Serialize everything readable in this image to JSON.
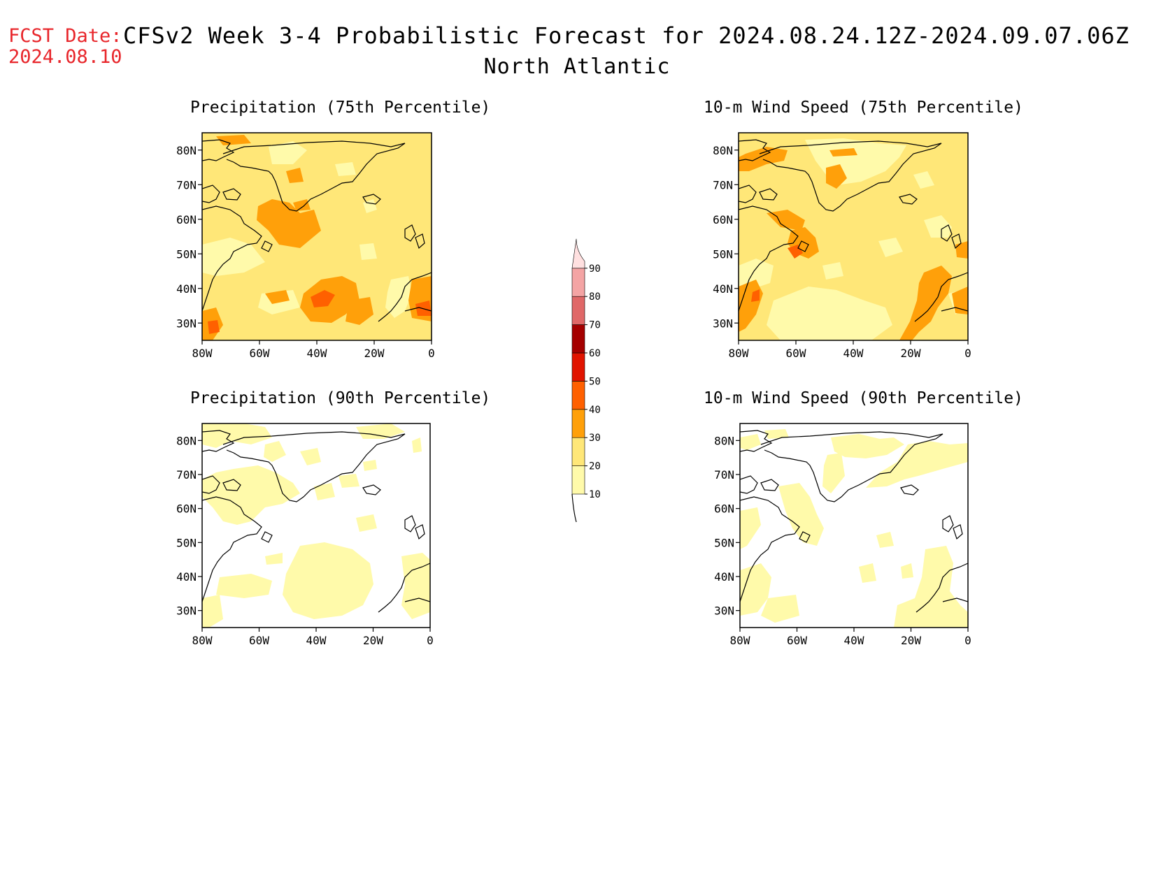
{
  "header": {
    "fcst_label": "FCST Date:",
    "fcst_date": "2024.08.10",
    "title": "CFSv2 Week 3-4 Probabilistic Forecast for 2024.08.24.12Z-2024.09.07.06Z",
    "subtitle": "North Atlantic"
  },
  "map_extent": {
    "lon": [
      -80,
      0
    ],
    "lat": [
      25,
      85
    ]
  },
  "lon_ticks": [
    "80W",
    "60W",
    "40W",
    "20W",
    "0"
  ],
  "lat_ticks": [
    "80N",
    "70N",
    "60N",
    "50N",
    "40N",
    "30N"
  ],
  "panels": [
    {
      "id": "precip75",
      "title": "Precipitation (75th Percentile)"
    },
    {
      "id": "wind75",
      "title": "10-m Wind Speed (75th Percentile)"
    },
    {
      "id": "precip90",
      "title": "Precipitation (90th Percentile)"
    },
    {
      "id": "wind90",
      "title": "10-m Wind Speed (90th Percentile)"
    }
  ],
  "colorbar": {
    "levels": [
      "10",
      "20",
      "30",
      "40",
      "50",
      "60",
      "70",
      "80",
      "90"
    ],
    "colors": [
      "#fffaaa",
      "#ffe778",
      "#ffa00a",
      "#ff6000",
      "#e11400",
      "#a50000",
      "#e06868",
      "#f4a4a4",
      "#ffe0e0"
    ]
  },
  "colors": {
    "light_yellow": "#fffaaa",
    "yellow": "#ffe778",
    "orange": "#ffa00a",
    "dark_orange": "#ff6000",
    "title_red": "#e8262b"
  }
}
